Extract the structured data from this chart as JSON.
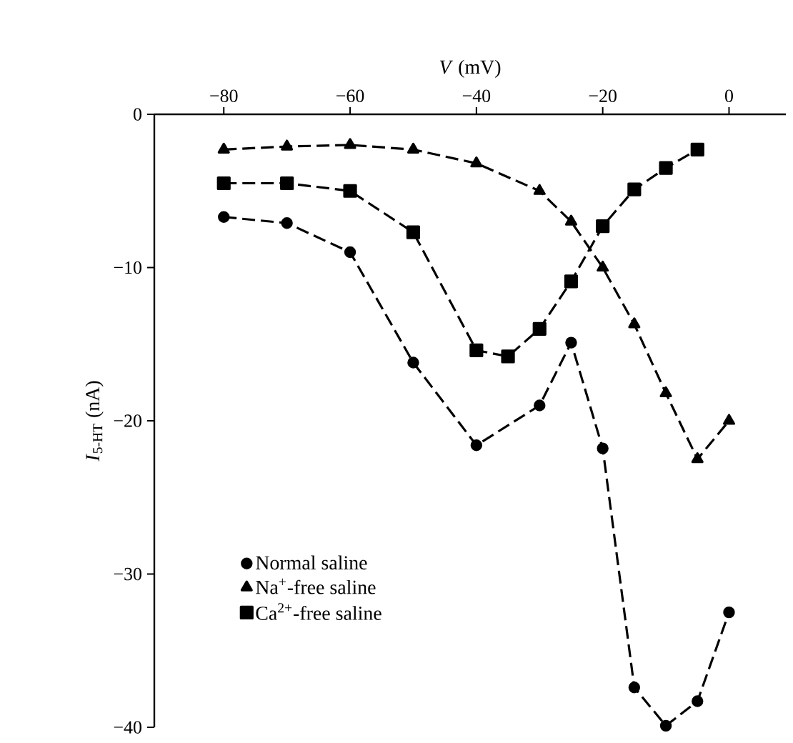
{
  "chart_data": {
    "type": "line",
    "xlabel": "*V* (mV)",
    "ylabel": "*I*$_{5-HT}$ (nA)",
    "xlim": [
      -91,
      9
    ],
    "ylim": [
      -40,
      0
    ],
    "xticks": [
      {
        "value": -80,
        "label": "−80"
      },
      {
        "value": -60,
        "label": "−60"
      },
      {
        "value": -40,
        "label": "−40"
      },
      {
        "value": -20,
        "label": "−20"
      },
      0
    ],
    "yticks": [
      {
        "value": -40,
        "label": "−40"
      },
      {
        "value": -30,
        "label": "−30"
      },
      {
        "value": -20,
        "label": "−20"
      },
      {
        "value": -10,
        "label": "−10"
      },
      0
    ],
    "legend": "bottom left",
    "line_style": "dashed",
    "series": [
      {
        "name": "Normal saline",
        "color": "#000000",
        "marker": "circle",
        "x": [
          -80,
          -70,
          -60,
          -50,
          -40,
          -30,
          -25,
          -20,
          -15,
          -10,
          -5,
          0
        ],
        "values": [
          -6.7,
          -7.1,
          -9.0,
          -16.2,
          -21.6,
          -19.0,
          -14.9,
          -21.8,
          -37.4,
          -39.9,
          -38.3,
          -32.5
        ]
      },
      {
        "name": "Na$^{+}$-free saline",
        "color": "#000000",
        "marker": "triangle",
        "x": [
          -80,
          -70,
          -60,
          -50,
          -40,
          -30,
          -25,
          -20,
          -15,
          -10,
          -5,
          0
        ],
        "values": [
          -2.3,
          -2.1,
          -2.0,
          -2.3,
          -3.2,
          -5.0,
          -7.0,
          -10.0,
          -13.7,
          -18.2,
          -22.5,
          -20.0
        ]
      },
      {
        "name": "Ca$^{2+}$-free saline",
        "color": "#000000",
        "marker": "square",
        "x": [
          -80,
          -70,
          -60,
          -50,
          -40,
          -35,
          -30,
          -25,
          -20,
          -15,
          -10,
          -5
        ],
        "values": [
          -4.5,
          -4.5,
          -5.0,
          -7.7,
          -15.4,
          -15.8,
          -14.0,
          -10.9,
          -7.3,
          -4.9,
          -3.5,
          -2.3
        ]
      }
    ]
  }
}
